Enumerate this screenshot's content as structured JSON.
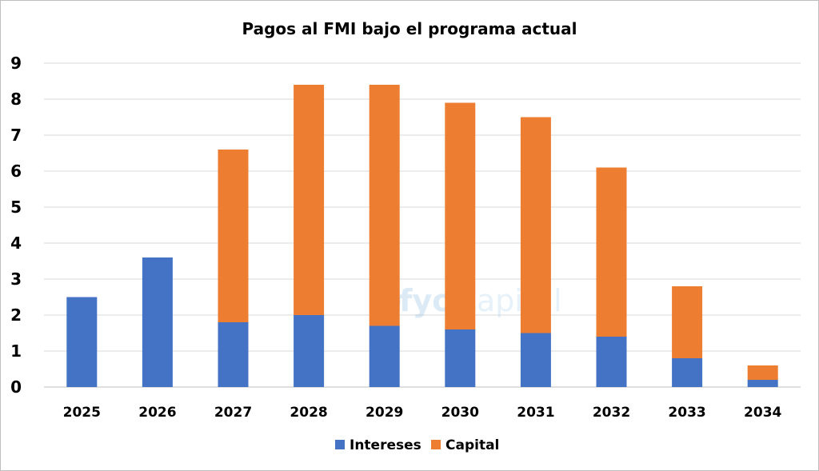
{
  "chart_data": {
    "type": "bar",
    "stacked": true,
    "title": "Pagos al FMI bajo el programa actual",
    "categories": [
      "2025",
      "2026",
      "2027",
      "2028",
      "2029",
      "2030",
      "2031",
      "2032",
      "2033",
      "2034"
    ],
    "series": [
      {
        "name": "Intereses",
        "color": "#4472C4",
        "values": [
          2.5,
          3.6,
          1.8,
          2.0,
          1.7,
          1.6,
          1.5,
          1.4,
          0.8,
          0.2
        ]
      },
      {
        "name": "Capital",
        "color": "#ED7D31",
        "values": [
          0,
          0,
          4.8,
          6.4,
          6.7,
          6.3,
          6.0,
          4.7,
          2.0,
          0.4
        ]
      }
    ],
    "yticks": [
      "0",
      "1",
      "2",
      "3",
      "4",
      "5",
      "6",
      "7",
      "8",
      "9"
    ],
    "ylim": [
      0,
      9
    ],
    "grid": true,
    "legend_position": "bottom",
    "watermark": {
      "fyo": "fyo",
      "capital": "capital"
    }
  }
}
